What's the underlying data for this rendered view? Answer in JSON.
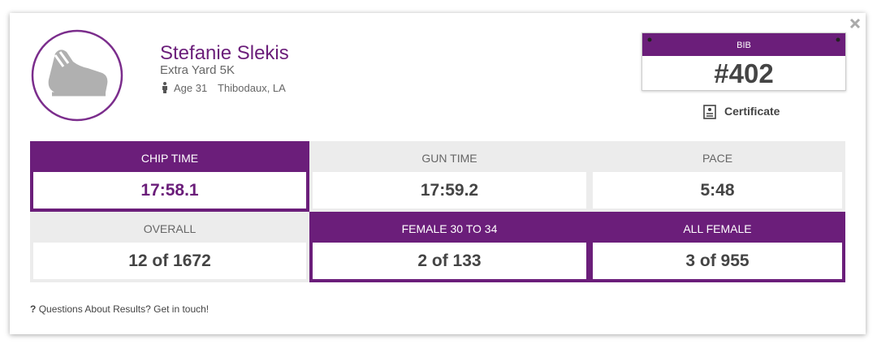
{
  "athlete": {
    "name": "Stefanie Slekis",
    "event": "Extra Yard 5K",
    "age": "Age 31",
    "location": "Thibodaux, LA"
  },
  "bib": {
    "label": "BIB",
    "number": "#402"
  },
  "certificate": "Certificate",
  "results": {
    "highlight_color": "#6b1e7a",
    "rows": [
      [
        {
          "label": "CHIP TIME",
          "value": "17:58.1",
          "highlight": true
        },
        {
          "label": "GUN TIME",
          "value": "17:59.2",
          "highlight": false
        },
        {
          "label": "PACE",
          "value": "5:48",
          "highlight": false
        }
      ],
      [
        {
          "label": "OVERALL",
          "value": "12 of 1672",
          "highlight": false
        },
        {
          "label": "FEMALE 30 TO 34",
          "value": "2 of 133",
          "highlight": true
        },
        {
          "label": "ALL FEMALE",
          "value": "3 of 955",
          "highlight": true
        }
      ]
    ]
  },
  "footer": {
    "icon": "?",
    "text": "Questions About Results? Get in touch!"
  }
}
